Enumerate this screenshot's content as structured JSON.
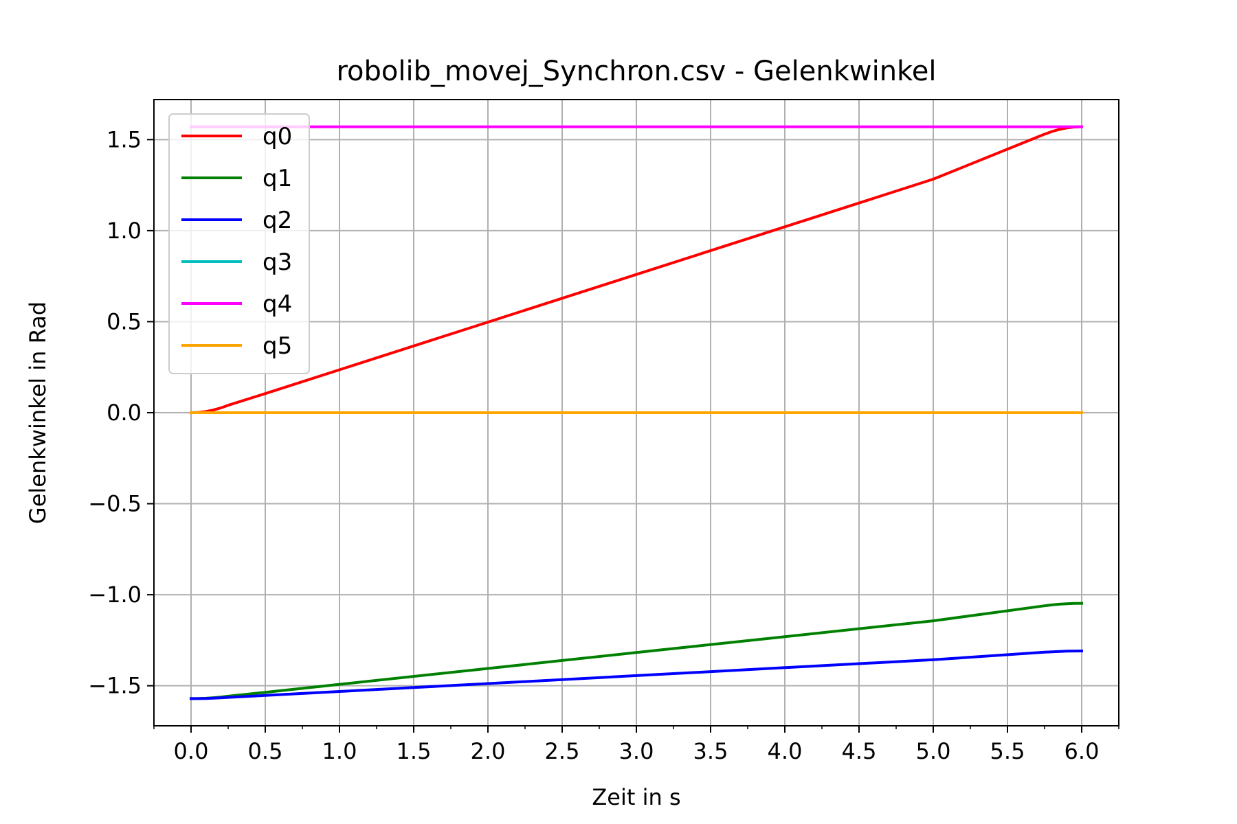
{
  "chart_data": {
    "type": "line",
    "title": "robolib_movej_Synchron.csv - Gelenkwinkel",
    "xlabel": "Zeit in s",
    "ylabel": "Gelenkwinkel in Rad",
    "xlim": [
      -0.25,
      6.25
    ],
    "ylim": [
      -1.72,
      1.72
    ],
    "xticks": [
      0.0,
      0.5,
      1.0,
      1.5,
      2.0,
      2.5,
      3.0,
      3.5,
      4.0,
      4.5,
      5.0,
      5.5,
      6.0
    ],
    "xtick_labels": [
      "0.0",
      "0.5",
      "1.0",
      "1.5",
      "2.0",
      "2.5",
      "3.0",
      "3.5",
      "4.0",
      "4.5",
      "5.0",
      "5.5",
      "6.0"
    ],
    "yticks": [
      -1.5,
      -1.0,
      -0.5,
      0.0,
      0.5,
      1.0,
      1.5
    ],
    "ytick_labels": [
      "−1.5",
      "−1.0",
      "−0.5",
      "0.0",
      "0.5",
      "1.0",
      "1.5"
    ],
    "grid": true,
    "legend_position": "upper-left",
    "series": [
      {
        "name": "q0",
        "color": "#ff0000",
        "x": [
          0.0,
          0.05,
          0.1,
          0.15,
          0.2,
          0.25,
          0.5,
          1.0,
          2.0,
          3.0,
          4.0,
          5.0,
          5.75,
          5.8,
          5.85,
          5.9,
          5.95,
          6.0
        ],
        "y": [
          0.0,
          0.0016,
          0.0065,
          0.0146,
          0.0262,
          0.0409,
          0.1047,
          0.2356,
          0.4974,
          0.7592,
          1.021,
          1.2828,
          1.5299,
          1.5446,
          1.5562,
          1.5643,
          1.5692,
          1.5708
        ]
      },
      {
        "name": "q1",
        "color": "#008000",
        "x": [
          0.0,
          0.05,
          0.1,
          0.15,
          0.2,
          0.25,
          0.5,
          1.0,
          2.0,
          3.0,
          4.0,
          5.0,
          5.75,
          5.8,
          5.85,
          5.9,
          5.95,
          6.0
        ],
        "y": [
          -1.5708,
          -1.5703,
          -1.5686,
          -1.5659,
          -1.5621,
          -1.5572,
          -1.5359,
          -1.4923,
          -1.405,
          -1.3177,
          -1.2305,
          -1.1432,
          -1.0608,
          -1.0559,
          -1.0521,
          -1.0494,
          -1.0477,
          -1.0472
        ]
      },
      {
        "name": "q2",
        "color": "#0000ff",
        "x": [
          0.0,
          0.05,
          0.1,
          0.15,
          0.2,
          0.25,
          0.5,
          1.0,
          2.0,
          3.0,
          4.0,
          5.0,
          5.75,
          5.8,
          5.85,
          5.9,
          5.95,
          6.0
        ],
        "y": [
          -1.5708,
          -1.5705,
          -1.5697,
          -1.5684,
          -1.5664,
          -1.564,
          -1.5533,
          -1.5315,
          -1.4879,
          -1.4442,
          -1.4006,
          -1.357,
          -1.3158,
          -1.3133,
          -1.3114,
          -1.3101,
          -1.3092,
          -1.309
        ]
      },
      {
        "name": "q3",
        "color": "#00bfbf",
        "x": [
          0.0,
          6.0
        ],
        "y": [
          0.0,
          0.0
        ]
      },
      {
        "name": "q4",
        "color": "#ff00ff",
        "x": [
          0.0,
          6.0
        ],
        "y": [
          1.5708,
          1.5708
        ]
      },
      {
        "name": "q5",
        "color": "#ffa500",
        "x": [
          0.0,
          6.0
        ],
        "y": [
          0.0,
          0.0
        ]
      }
    ]
  }
}
